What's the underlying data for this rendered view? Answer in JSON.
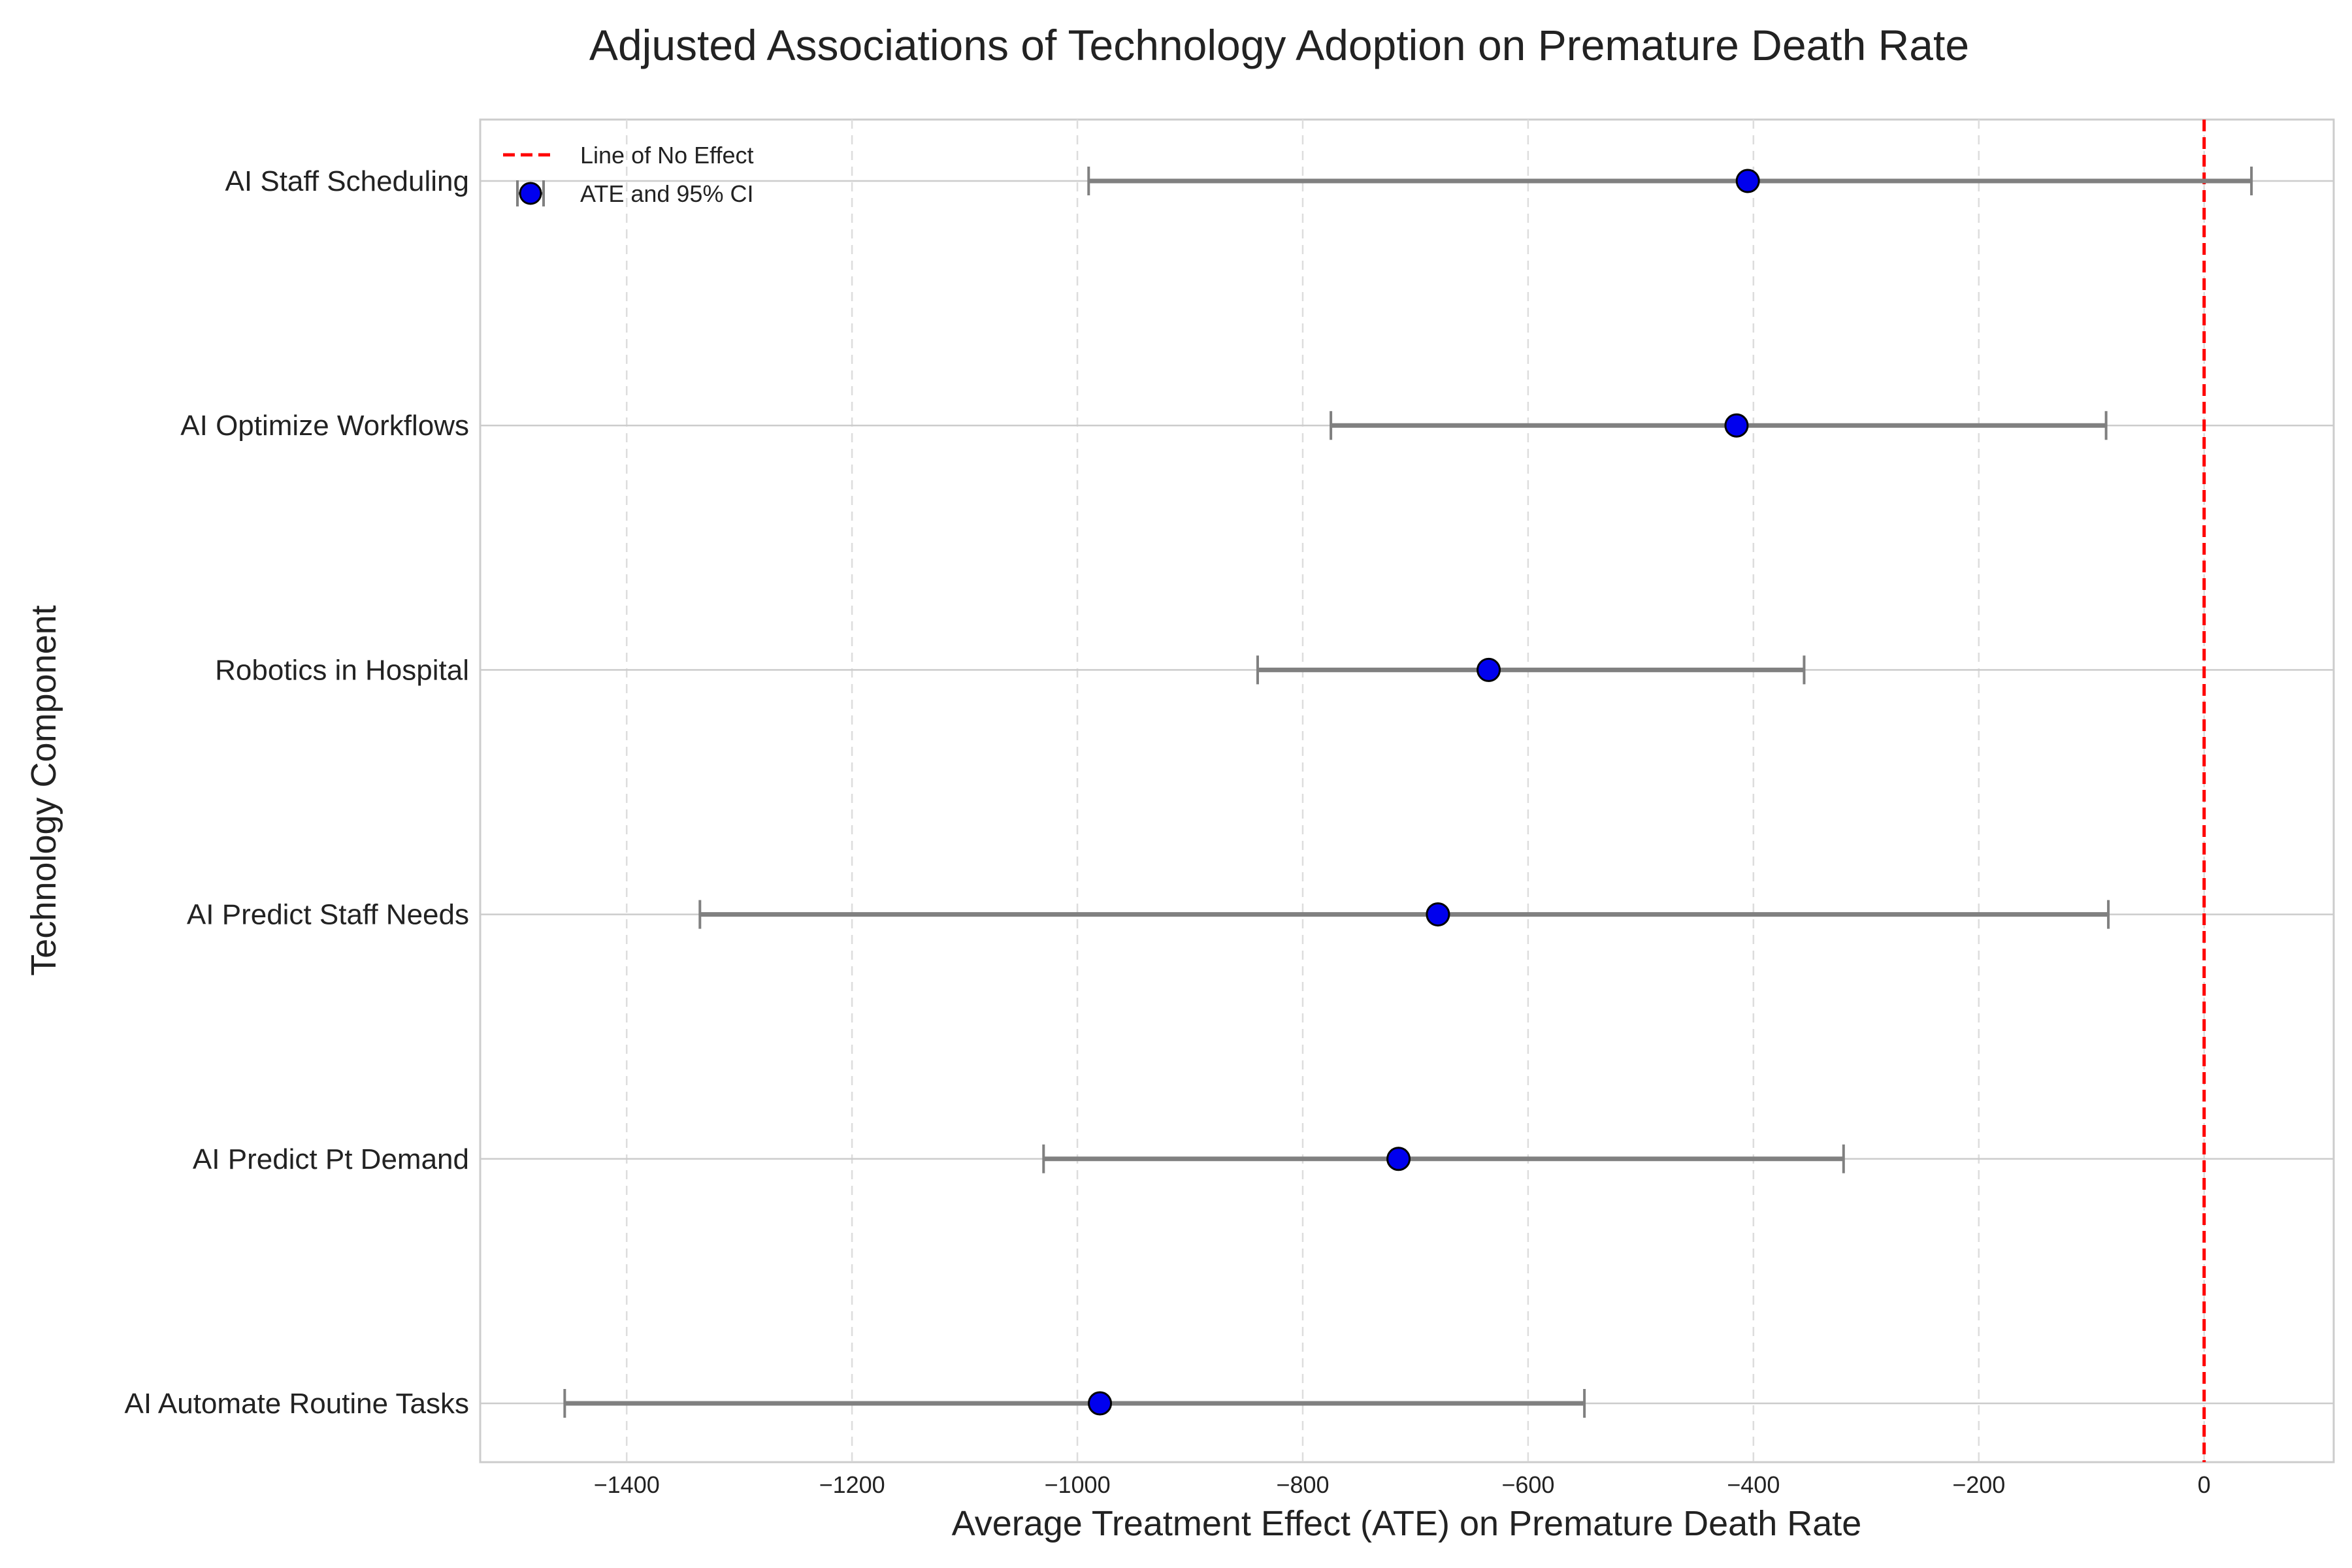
{
  "chart_data": {
    "type": "forest",
    "title": "Adjusted Associations of Technology Adoption on Premature Death Rate",
    "xlabel": "Average Treatment Effect (ATE) on Premature Death Rate",
    "ylabel": "Technology Component",
    "xlim": [
      -1530,
      115
    ],
    "xticks": [
      -1400,
      -1200,
      -1000,
      -800,
      -600,
      -400,
      -200,
      0
    ],
    "xtick_labels": [
      "−1400",
      "−1200",
      "−1000",
      "−800",
      "−600",
      "−400",
      "−200",
      "0"
    ],
    "categories": [
      "AI Staff Scheduling",
      "AI Optimize Workflows",
      "Robotics in Hospital",
      "AI Predict Staff Needs",
      "AI Predict Pt Demand",
      "AI Automate Routine Tasks"
    ],
    "ate": [
      -405,
      -415,
      -635,
      -680,
      -715,
      -980
    ],
    "ci_lower": [
      -990,
      -775,
      -840,
      -1335,
      -1030,
      -1455
    ],
    "ci_upper": [
      42,
      -87,
      -355,
      -85,
      -320,
      -550
    ],
    "reference_line": {
      "x": 0,
      "label": "Line of No Effect",
      "color": "#ff0000",
      "style": "dashed"
    },
    "legend": {
      "position": "top-left",
      "entries": [
        "Line of No Effect",
        "ATE and 95% CI"
      ]
    },
    "grid": true,
    "colors": {
      "point": "#0000ee",
      "ci": "#808080",
      "reference": "#ff0000"
    }
  }
}
